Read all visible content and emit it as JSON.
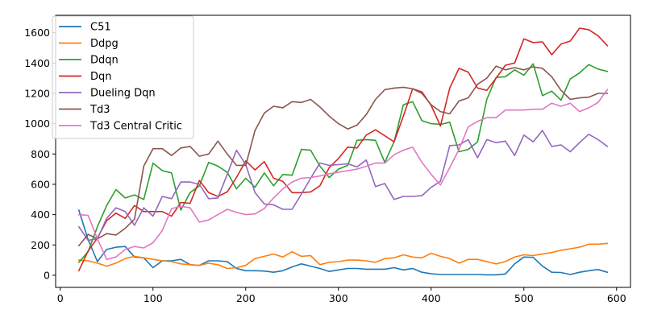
{
  "chart_data": {
    "type": "line",
    "title": "",
    "xlabel": "",
    "ylabel": "",
    "xlim": [
      -5,
      615
    ],
    "ylim": [
      -80,
      1715
    ],
    "xticks": [
      0,
      100,
      200,
      300,
      400,
      500,
      600
    ],
    "yticks": [
      0,
      200,
      400,
      600,
      800,
      1000,
      1200,
      1400,
      1600
    ],
    "grid": false,
    "legend_position": "top-left",
    "x": [
      20,
      30,
      40,
      50,
      60,
      70,
      80,
      90,
      100,
      110,
      120,
      130,
      140,
      150,
      160,
      170,
      180,
      190,
      200,
      210,
      220,
      230,
      240,
      250,
      260,
      270,
      280,
      290,
      300,
      310,
      320,
      330,
      340,
      350,
      360,
      370,
      380,
      390,
      400,
      410,
      420,
      430,
      440,
      450,
      460,
      470,
      480,
      490,
      500,
      510,
      520,
      530,
      540,
      550,
      560,
      570,
      580,
      590
    ],
    "series": [
      {
        "name": "C51",
        "color": "#1f77b4",
        "values": [
          430,
          235,
          90,
          170,
          185,
          190,
          120,
          115,
          50,
          95,
          95,
          105,
          70,
          65,
          95,
          95,
          90,
          45,
          30,
          30,
          28,
          20,
          30,
          55,
          75,
          60,
          45,
          25,
          35,
          45,
          45,
          40,
          40,
          40,
          50,
          35,
          45,
          20,
          10,
          5,
          5,
          5,
          5,
          5,
          3,
          3,
          8,
          75,
          120,
          118,
          60,
          20,
          18,
          5,
          20,
          30,
          38,
          20
        ]
      },
      {
        "name": "Ddpg",
        "color": "#ff7f0e",
        "values": [
          100,
          95,
          80,
          60,
          80,
          110,
          125,
          115,
          105,
          95,
          90,
          75,
          70,
          65,
          80,
          70,
          45,
          50,
          65,
          110,
          125,
          140,
          120,
          155,
          125,
          130,
          70,
          85,
          90,
          100,
          100,
          95,
          85,
          110,
          115,
          135,
          120,
          115,
          145,
          125,
          110,
          80,
          105,
          105,
          90,
          75,
          90,
          120,
          135,
          130,
          140,
          150,
          165,
          175,
          185,
          205,
          205,
          210
        ]
      },
      {
        "name": "Ddqn",
        "color": "#2ca02c",
        "values": [
          85,
          155,
          320,
          460,
          565,
          510,
          530,
          500,
          740,
          690,
          675,
          430,
          545,
          590,
          745,
          720,
          680,
          570,
          640,
          580,
          675,
          590,
          665,
          660,
          830,
          825,
          720,
          645,
          700,
          725,
          890,
          895,
          890,
          745,
          880,
          1125,
          1145,
          1020,
          1000,
          995,
          1010,
          815,
          830,
          880,
          1160,
          1305,
          1310,
          1355,
          1320,
          1395,
          1185,
          1215,
          1155,
          1295,
          1335,
          1390,
          1360,
          1345
        ]
      },
      {
        "name": "Dqn",
        "color": "#d62728",
        "values": [
          30,
          160,
          245,
          360,
          410,
          375,
          460,
          420,
          420,
          420,
          390,
          480,
          475,
          625,
          545,
          520,
          550,
          645,
          755,
          695,
          750,
          640,
          620,
          545,
          545,
          550,
          590,
          710,
          770,
          845,
          840,
          925,
          960,
          920,
          880,
          1050,
          1230,
          1210,
          1120,
          985,
          1235,
          1365,
          1340,
          1235,
          1220,
          1300,
          1385,
          1400,
          1560,
          1535,
          1540,
          1455,
          1525,
          1545,
          1630,
          1620,
          1580,
          1515
        ]
      },
      {
        "name": "Dueling Dqn",
        "color": "#9467bd",
        "values": [
          320,
          230,
          240,
          375,
          445,
          420,
          330,
          445,
          390,
          520,
          505,
          615,
          615,
          600,
          505,
          510,
          665,
          825,
          730,
          545,
          470,
          465,
          435,
          435,
          535,
          640,
          740,
          725,
          730,
          735,
          715,
          760,
          585,
          605,
          500,
          520,
          520,
          525,
          580,
          620,
          855,
          860,
          895,
          775,
          895,
          875,
          885,
          790,
          925,
          880,
          955,
          850,
          860,
          815,
          875,
          930,
          895,
          850
        ]
      },
      {
        "name": "Td3",
        "color": "#8c564b",
        "values": [
          195,
          270,
          240,
          275,
          265,
          310,
          370,
          720,
          835,
          835,
          790,
          840,
          850,
          785,
          800,
          885,
          800,
          725,
          725,
          955,
          1070,
          1115,
          1105,
          1145,
          1140,
          1160,
          1110,
          1050,
          1000,
          965,
          990,
          1060,
          1160,
          1225,
          1235,
          1240,
          1230,
          1200,
          1125,
          1080,
          1065,
          1150,
          1170,
          1260,
          1300,
          1380,
          1355,
          1370,
          1355,
          1375,
          1365,
          1310,
          1220,
          1160,
          1170,
          1175,
          1200,
          1200
        ]
      },
      {
        "name": "Td3 Central Critic",
        "color": "#e377c2",
        "values": [
          400,
          395,
          240,
          105,
          120,
          170,
          190,
          180,
          215,
          295,
          440,
          455,
          445,
          350,
          365,
          400,
          435,
          415,
          400,
          405,
          440,
          510,
          570,
          615,
          640,
          645,
          655,
          670,
          680,
          690,
          700,
          720,
          740,
          740,
          795,
          825,
          845,
          745,
          665,
          595,
          710,
          830,
          980,
          1015,
          1040,
          1040,
          1090,
          1090,
          1090,
          1095,
          1095,
          1135,
          1115,
          1135,
          1080,
          1105,
          1140,
          1225
        ]
      }
    ]
  }
}
